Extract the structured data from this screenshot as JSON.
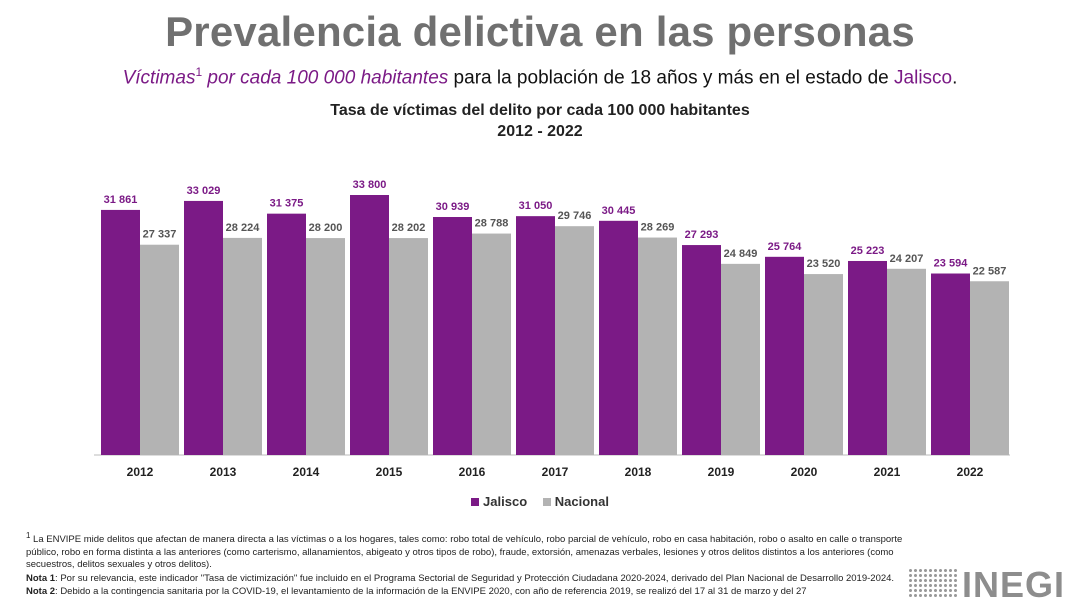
{
  "header": {
    "title": "Prevalencia delictiva en las personas",
    "subtitle_part1": "Víctimas",
    "subtitle_sup": "1",
    "subtitle_part2": " por cada 100 000 habitantes",
    "subtitle_part3": " para la población de 18 años y más en el estado de ",
    "subtitle_state": "Jalisco",
    "subtitle_end": "."
  },
  "colors": {
    "jalisco": "#7b1a86",
    "nacional": "#b3b3b3",
    "label_nacional": "#555555"
  },
  "chart_data": {
    "type": "bar",
    "title": "Tasa de víctimas del delito por cada 100 000 habitantes",
    "subtitle": "2012 - 2022",
    "categories": [
      "2012",
      "2013",
      "2014",
      "2015",
      "2016",
      "2017",
      "2018",
      "2019",
      "2020",
      "2021",
      "2022"
    ],
    "series": [
      {
        "name": "Jalisco",
        "values": [
          31861,
          33029,
          31375,
          33800,
          30939,
          31050,
          30445,
          27293,
          25764,
          25223,
          23594
        ],
        "labels": [
          "31 861",
          "33 029",
          "31 375",
          "33 800",
          "30 939",
          "31 050",
          "30 445",
          "27 293",
          "25 764",
          "25 223",
          "23 594"
        ]
      },
      {
        "name": "Nacional",
        "values": [
          27337,
          28224,
          28200,
          28202,
          28788,
          29746,
          28269,
          24849,
          23520,
          24207,
          22587
        ],
        "labels": [
          "27 337",
          "28 224",
          "28 200",
          "28 202",
          "28 788",
          "29 746",
          "28 269",
          "24 849",
          "23 520",
          "24 207",
          "22 587"
        ]
      }
    ],
    "ylim": [
      0,
      37700
    ],
    "legend_position": "bottom"
  },
  "footnotes": {
    "n1_mark": "1",
    "n1_text": " La ENVIPE mide delitos que afectan de manera directa a las víctimas o a los hogares, tales como: robo total de vehículo, robo parcial de vehículo, robo en casa habitación, robo o asalto en calle o transporte público, robo en forma distinta a las anteriores (como carterismo, allanamientos, abigeato y otros tipos de robo), fraude, extorsión, amenazas verbales, lesiones y otros delitos distintos a los anteriores (como secuestros, delitos sexuales y otros delitos).",
    "n2_label": "Nota 1",
    "n2_text": ": Por su relevancia, este indicador \"Tasa de victimización\" fue incluido en el Programa Sectorial de Seguridad y Protección Ciudadana 2020-2024, derivado del Plan Nacional de Desarrollo 2019-2024.",
    "n3_label": "Nota 2",
    "n3_text": ": Debido a la contingencia sanitaria por la COVID-19, el levantamiento de la información de la ENVIPE 2020, con año de referencia 2019, se realizó del 17 al 31 de marzo y del 27"
  },
  "logo": {
    "text": "INEGI"
  }
}
